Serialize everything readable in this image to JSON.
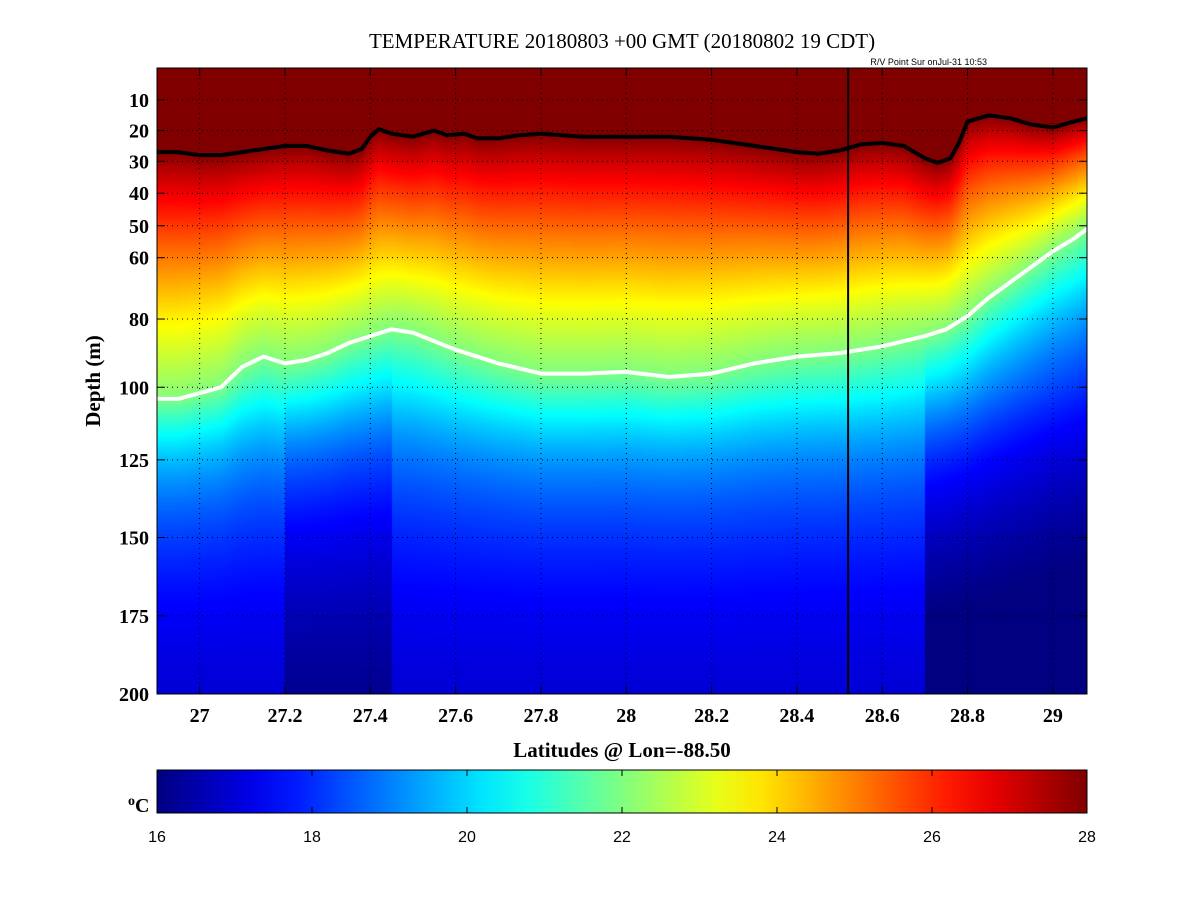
{
  "chart_data": {
    "type": "heatmap",
    "title": "TEMPERATURE 20180803 +00 GMT (20180802 19 CDT)",
    "annotation": "R/V Point Sur onJul-31 10:53",
    "xlabel": "Latitudes @ Lon=-88.50",
    "ylabel": "Depth (m)",
    "xlim": [
      26.9,
      29.08
    ],
    "ylim": [
      0,
      200
    ],
    "y_reversed": true,
    "y_axis_note": "depth axis stretched near surface (non-linear)",
    "x_ticks": [
      27,
      27.2,
      27.4,
      27.6,
      27.8,
      28,
      28.2,
      28.4,
      28.6,
      28.8,
      29
    ],
    "x_tick_labels": [
      "27",
      "27.2",
      "27.4",
      "27.6",
      "27.8",
      "28",
      "28.2",
      "28.4",
      "28.6",
      "28.8",
      "29"
    ],
    "y_ticks": [
      10,
      20,
      30,
      40,
      50,
      60,
      80,
      100,
      125,
      150,
      175,
      200
    ],
    "y_tick_labels": [
      "10",
      "20",
      "30",
      "40",
      "50",
      "60",
      "80",
      "100",
      "125",
      "150",
      "175",
      "200"
    ],
    "grid": true,
    "grid_style": "dotted",
    "colormap": "jet",
    "colorbar": {
      "label": "oC",
      "label_main": "o",
      "label_sup": "C",
      "range": [
        16,
        28
      ],
      "ticks": [
        16,
        18,
        20,
        22,
        24,
        26,
        28
      ],
      "tick_labels": [
        "16",
        "18",
        "20",
        "22",
        "24",
        "26",
        "28"
      ],
      "placement": "bottom"
    },
    "series": [
      {
        "kind": "contour",
        "color": "#000000",
        "points": [
          [
            26.9,
            27
          ],
          [
            26.95,
            27
          ],
          [
            27.0,
            28
          ],
          [
            27.05,
            28
          ],
          [
            27.1,
            27
          ],
          [
            27.15,
            26
          ],
          [
            27.2,
            25
          ],
          [
            27.25,
            25
          ],
          [
            27.3,
            26.5
          ],
          [
            27.35,
            27.5
          ],
          [
            27.38,
            26
          ],
          [
            27.4,
            22
          ],
          [
            27.42,
            19.5
          ],
          [
            27.45,
            21
          ],
          [
            27.5,
            22
          ],
          [
            27.55,
            20
          ],
          [
            27.58,
            21.5
          ],
          [
            27.62,
            21
          ],
          [
            27.65,
            22.5
          ],
          [
            27.7,
            22.5
          ],
          [
            27.75,
            21.5
          ],
          [
            27.8,
            21
          ],
          [
            27.9,
            22
          ],
          [
            28.0,
            22
          ],
          [
            28.1,
            22
          ],
          [
            28.2,
            23
          ],
          [
            28.3,
            25
          ],
          [
            28.4,
            27
          ],
          [
            28.45,
            27.5
          ],
          [
            28.5,
            26.5
          ],
          [
            28.55,
            24.5
          ],
          [
            28.6,
            24
          ],
          [
            28.65,
            25
          ],
          [
            28.7,
            29
          ],
          [
            28.73,
            30.5
          ],
          [
            28.76,
            29
          ],
          [
            28.78,
            24
          ],
          [
            28.8,
            17
          ],
          [
            28.85,
            15
          ],
          [
            28.9,
            16
          ],
          [
            28.95,
            18
          ],
          [
            29.0,
            19
          ],
          [
            29.05,
            17
          ],
          [
            29.08,
            16
          ]
        ]
      },
      {
        "kind": "contour",
        "color": "#ffffff",
        "points": [
          [
            26.9,
            104
          ],
          [
            26.95,
            104
          ],
          [
            27.0,
            102
          ],
          [
            27.05,
            100
          ],
          [
            27.1,
            94
          ],
          [
            27.15,
            91
          ],
          [
            27.2,
            93
          ],
          [
            27.25,
            92
          ],
          [
            27.3,
            90
          ],
          [
            27.35,
            87
          ],
          [
            27.4,
            85
          ],
          [
            27.45,
            83
          ],
          [
            27.5,
            84
          ],
          [
            27.6,
            89
          ],
          [
            27.7,
            93
          ],
          [
            27.8,
            96
          ],
          [
            27.9,
            96
          ],
          [
            28.0,
            95.5
          ],
          [
            28.1,
            97
          ],
          [
            28.2,
            96
          ],
          [
            28.3,
            93
          ],
          [
            28.4,
            91
          ],
          [
            28.5,
            90
          ],
          [
            28.6,
            88
          ],
          [
            28.7,
            85
          ],
          [
            28.75,
            83
          ],
          [
            28.8,
            79
          ],
          [
            28.85,
            73
          ],
          [
            28.9,
            68
          ],
          [
            28.95,
            63
          ],
          [
            29.0,
            58
          ],
          [
            29.05,
            54
          ],
          [
            29.08,
            51
          ]
        ]
      }
    ],
    "vertical_marker": {
      "x": 28.52,
      "color": "#000000"
    }
  }
}
